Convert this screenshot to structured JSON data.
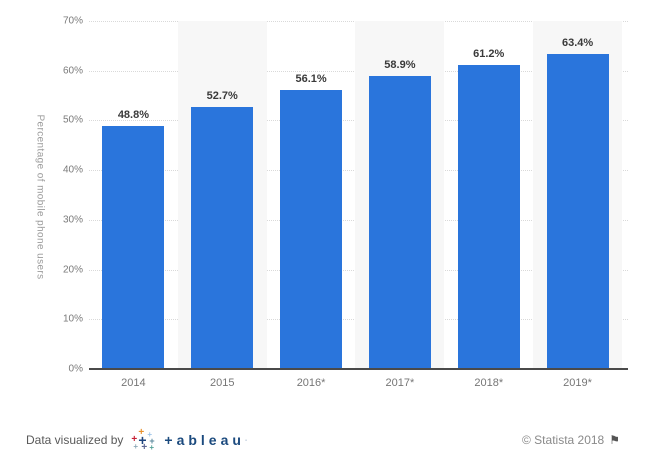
{
  "chart_data": {
    "type": "bar",
    "categories": [
      "2014",
      "2015",
      "2016*",
      "2017*",
      "2018*",
      "2019*"
    ],
    "values": [
      48.8,
      52.7,
      56.1,
      58.9,
      61.2,
      63.4
    ],
    "value_labels": [
      "48.8%",
      "52.7%",
      "56.1%",
      "58.9%",
      "61.2%",
      "63.4%"
    ],
    "title": "",
    "xlabel": "",
    "ylabel": "Percentage of mobile phone users",
    "ylim": [
      0,
      70
    ],
    "ytick_values": [
      0,
      10,
      20,
      30,
      40,
      50,
      60,
      70
    ],
    "ytick_labels": [
      "0%",
      "10%",
      "20%",
      "30%",
      "40%",
      "50%",
      "60%",
      "70%"
    ],
    "grid": "horizontal-dotted",
    "legend": "none",
    "colors": {
      "bar": "#2a75dc",
      "band": "#f7f7f7",
      "gridline": "#d9d9d9",
      "axis": "#4a4a4a"
    }
  },
  "footer": {
    "attribution": "Data visualized by",
    "tableau_wordmark": "+ableau",
    "tableau_plus_icon": "+",
    "copyright": "© Statista 2018",
    "flag_icon": "⚑"
  }
}
